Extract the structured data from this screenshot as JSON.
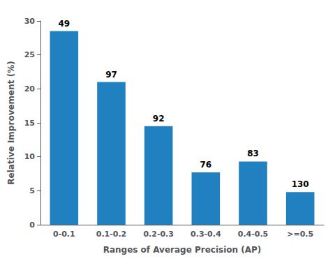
{
  "chart_data": {
    "type": "bar",
    "xlabel": "Ranges of Average Precision (AP)",
    "ylabel": "Relative Improvement (%)",
    "categories": [
      "0-0.1",
      "0.1-0.2",
      "0.2-0.3",
      "0.3-0.4",
      "0.4-0.5",
      ">=0.5"
    ],
    "values": [
      28.5,
      21.0,
      14.5,
      7.7,
      9.3,
      4.8
    ],
    "annotations": [
      "49",
      "97",
      "92",
      "76",
      "83",
      "130"
    ],
    "color": "#2080c0",
    "ylim": [
      0,
      30
    ],
    "yticks": [
      0,
      5,
      10,
      15,
      20,
      25,
      30
    ],
    "grid": false
  }
}
